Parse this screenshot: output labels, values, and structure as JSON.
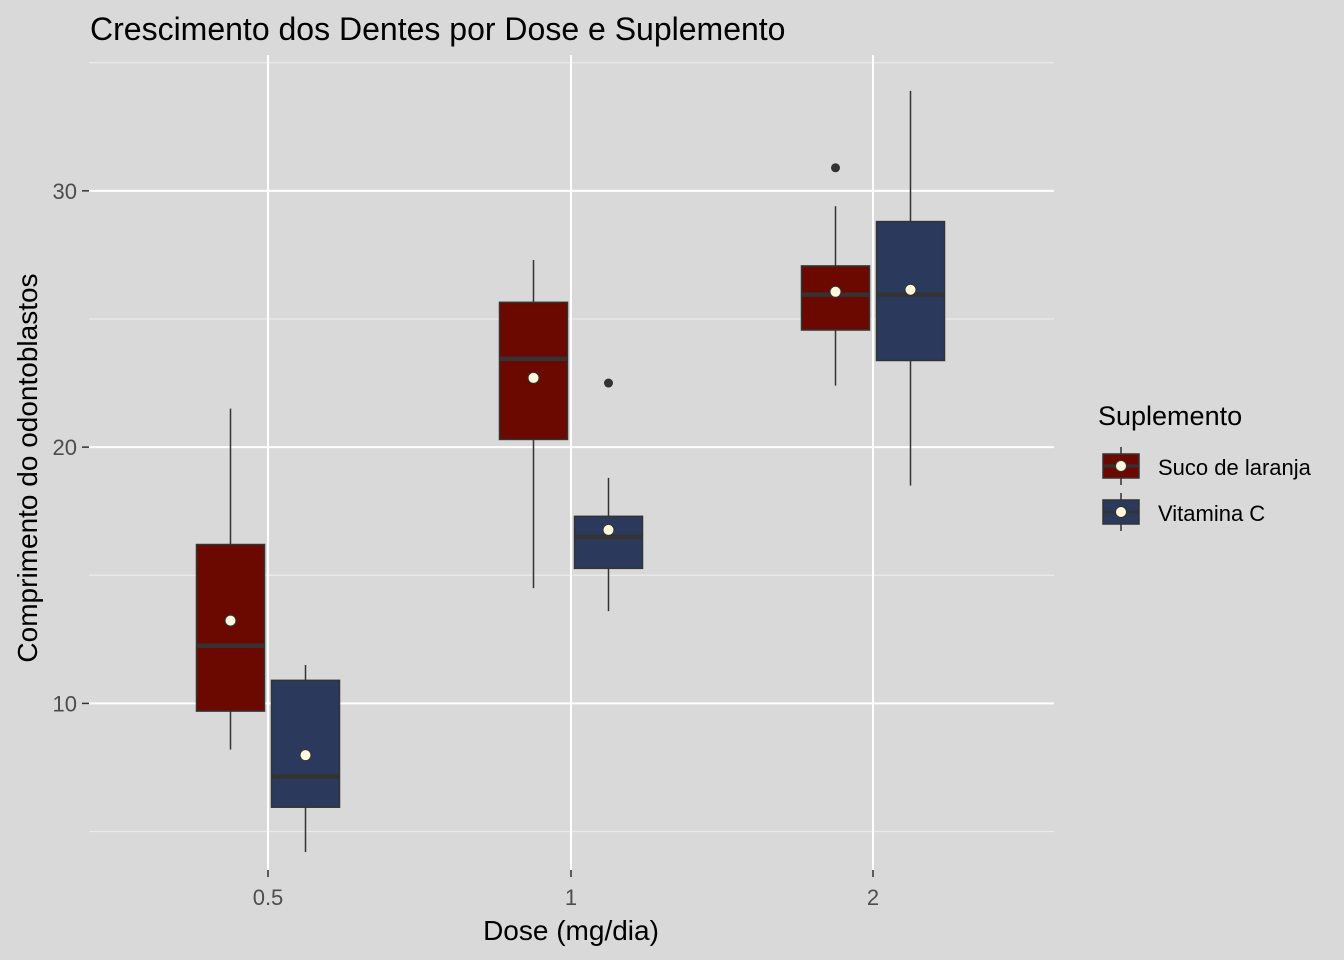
{
  "chart_data": {
    "type": "box",
    "title": "Crescimento dos Dentes por Dose e Suplemento",
    "xlabel": "Dose (mg/dia)",
    "ylabel": "Comprimento do odontoblastos",
    "categories": [
      "0.5",
      "1",
      "2"
    ],
    "ylim": [
      3.5,
      35.3
    ],
    "y_ticks": [
      10,
      20,
      30
    ],
    "grid": true,
    "legend": {
      "title": "Suplemento",
      "position": "right"
    },
    "series": [
      {
        "name": "Suco de laranja",
        "color": "#6b0800",
        "boxes": [
          {
            "category": "0.5",
            "whisker_low": 8.2,
            "q1": 9.7,
            "median": 12.25,
            "q3": 16.2,
            "whisker_high": 21.5,
            "mean": 13.23,
            "outliers": []
          },
          {
            "category": "1",
            "whisker_low": 14.5,
            "q1": 20.3,
            "median": 23.45,
            "q3": 25.65,
            "whisker_high": 27.3,
            "mean": 22.7,
            "outliers": []
          },
          {
            "category": "2",
            "whisker_low": 22.4,
            "q1": 24.57,
            "median": 25.95,
            "q3": 27.07,
            "whisker_high": 29.4,
            "mean": 26.06,
            "outliers": [
              30.9
            ]
          }
        ]
      },
      {
        "name": "Vitamina C",
        "color": "#2b3a5c",
        "boxes": [
          {
            "category": "0.5",
            "whisker_low": 4.2,
            "q1": 5.95,
            "median": 7.15,
            "q3": 10.9,
            "whisker_high": 11.5,
            "mean": 7.98,
            "outliers": []
          },
          {
            "category": "1",
            "whisker_low": 13.6,
            "q1": 15.27,
            "median": 16.5,
            "q3": 17.3,
            "whisker_high": 18.8,
            "mean": 16.77,
            "outliers": [
              22.5
            ]
          },
          {
            "category": "2",
            "whisker_low": 18.5,
            "q1": 23.38,
            "median": 25.95,
            "q3": 28.8,
            "whisker_high": 33.9,
            "mean": 26.14,
            "outliers": []
          }
        ]
      }
    ]
  }
}
